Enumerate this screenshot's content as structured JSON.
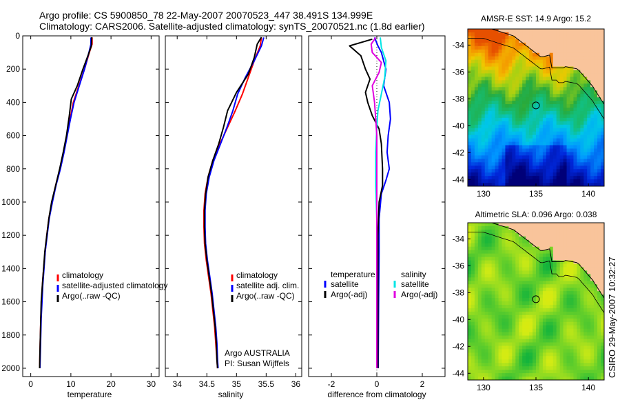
{
  "header": {
    "line1": "Argo profile: CS 5900850_78 22-May-2007 20070523_447 38.491S 134.999E",
    "line2": "Climatology: CARS2006. Satellite-adjusted climatology: synTS_20070521.nc (1.8d earlier)"
  },
  "colors": {
    "climatology": "#ff0000",
    "satellite": "#0000ff",
    "argo": "#000000",
    "sal_sat": "#00e5e5",
    "sal_argo": "#e000e0"
  },
  "chart_data": [
    {
      "type": "line",
      "id": "temperature",
      "xlabel": "temperature",
      "ylabel": "",
      "xlim": [
        -2,
        32
      ],
      "ylim": [
        2050,
        0
      ],
      "xticks": [
        0,
        10,
        20,
        30
      ],
      "yticks": [
        0,
        200,
        400,
        600,
        800,
        1000,
        1200,
        1400,
        1600,
        1800,
        2000
      ],
      "legend": [
        "climatology",
        "satellite-adjusted climatology",
        "Argo(..raw -QC)"
      ],
      "series": [
        {
          "name": "climatology",
          "color": "#ff0000",
          "points": [
            [
              15.3,
              10
            ],
            [
              15.3,
              50
            ],
            [
              14.6,
              100
            ],
            [
              13.4,
              200
            ],
            [
              12.0,
              300
            ],
            [
              10.6,
              400
            ],
            [
              9.8,
              500
            ],
            [
              9.0,
              600
            ],
            [
              8.2,
              700
            ],
            [
              7.3,
              800
            ],
            [
              6.2,
              900
            ],
            [
              5.3,
              1000
            ],
            [
              4.5,
              1100
            ],
            [
              4.0,
              1200
            ],
            [
              3.6,
              1300
            ],
            [
              3.2,
              1400
            ],
            [
              2.9,
              1500
            ],
            [
              2.7,
              1600
            ],
            [
              2.5,
              1700
            ],
            [
              2.4,
              1800
            ],
            [
              2.3,
              1900
            ],
            [
              2.2,
              2000
            ]
          ]
        },
        {
          "name": "satellite-adjusted climatology",
          "color": "#0000ff",
          "points": [
            [
              15.0,
              10
            ],
            [
              15.0,
              50
            ],
            [
              14.5,
              100
            ],
            [
              13.4,
              200
            ],
            [
              12.1,
              300
            ],
            [
              10.8,
              400
            ],
            [
              9.9,
              500
            ],
            [
              9.1,
              600
            ],
            [
              8.3,
              700
            ],
            [
              7.4,
              800
            ],
            [
              6.3,
              900
            ],
            [
              5.4,
              1000
            ],
            [
              4.6,
              1100
            ],
            [
              4.1,
              1200
            ],
            [
              3.6,
              1300
            ],
            [
              3.3,
              1400
            ],
            [
              3.0,
              1500
            ],
            [
              2.8,
              1600
            ],
            [
              2.6,
              1700
            ],
            [
              2.5,
              1800
            ],
            [
              2.4,
              1900
            ],
            [
              2.3,
              2000
            ]
          ]
        },
        {
          "name": "Argo(..raw -QC)",
          "color": "#000000",
          "points": [
            [
              15.2,
              8
            ],
            [
              15.1,
              60
            ],
            [
              14.4,
              110
            ],
            [
              13.0,
              200
            ],
            [
              11.6,
              300
            ],
            [
              10.1,
              380
            ],
            [
              9.6,
              480
            ],
            [
              8.9,
              600
            ],
            [
              8.1,
              700
            ],
            [
              7.2,
              800
            ],
            [
              6.2,
              900
            ],
            [
              5.2,
              1000
            ],
            [
              4.5,
              1100
            ],
            [
              4.0,
              1200
            ],
            [
              3.5,
              1300
            ],
            [
              3.2,
              1400
            ],
            [
              2.9,
              1500
            ],
            [
              2.6,
              1600
            ],
            [
              2.5,
              1700
            ],
            [
              2.4,
              1800
            ],
            [
              2.3,
              1900
            ],
            [
              2.2,
              2000
            ]
          ]
        }
      ]
    },
    {
      "type": "line",
      "id": "salinity",
      "xlabel": "salinity",
      "xlim": [
        33.8,
        36.1
      ],
      "ylim": [
        2050,
        0
      ],
      "xticks": [
        34,
        34.5,
        35,
        35.5,
        36
      ],
      "legend": [
        "climatology",
        "satellite adj. clim.",
        "Argo(..raw -QC)"
      ],
      "annotation": [
        "Argo AUSTRALIA",
        "PI: Susan Wijffels"
      ],
      "series": [
        {
          "name": "climatology",
          "color": "#ff0000",
          "points": [
            [
              35.42,
              10
            ],
            [
              35.4,
              60
            ],
            [
              35.3,
              150
            ],
            [
              35.2,
              250
            ],
            [
              35.1,
              350
            ],
            [
              34.98,
              450
            ],
            [
              34.85,
              550
            ],
            [
              34.72,
              650
            ],
            [
              34.6,
              750
            ],
            [
              34.52,
              850
            ],
            [
              34.47,
              950
            ],
            [
              34.45,
              1050
            ],
            [
              34.45,
              1150
            ],
            [
              34.46,
              1250
            ],
            [
              34.49,
              1350
            ],
            [
              34.53,
              1450
            ],
            [
              34.57,
              1550
            ],
            [
              34.6,
              1650
            ],
            [
              34.63,
              1750
            ],
            [
              34.65,
              1850
            ],
            [
              34.67,
              1950
            ],
            [
              34.68,
              2000
            ]
          ]
        },
        {
          "name": "satellite adj. clim.",
          "color": "#0000ff",
          "points": [
            [
              35.46,
              10
            ],
            [
              35.42,
              60
            ],
            [
              35.3,
              150
            ],
            [
              35.15,
              250
            ],
            [
              35.02,
              350
            ],
            [
              34.94,
              450
            ],
            [
              34.84,
              550
            ],
            [
              34.73,
              650
            ],
            [
              34.62,
              750
            ],
            [
              34.54,
              850
            ],
            [
              34.49,
              950
            ],
            [
              34.47,
              1050
            ],
            [
              34.47,
              1150
            ],
            [
              34.48,
              1250
            ],
            [
              34.51,
              1350
            ],
            [
              34.55,
              1450
            ],
            [
              34.59,
              1550
            ],
            [
              34.62,
              1650
            ],
            [
              34.65,
              1750
            ],
            [
              34.67,
              1850
            ],
            [
              34.68,
              1950
            ],
            [
              34.69,
              2000
            ]
          ]
        },
        {
          "name": "Argo(..raw -QC)",
          "color": "#000000",
          "points": [
            [
              35.42,
              8
            ],
            [
              35.35,
              50
            ],
            [
              35.3,
              130
            ],
            [
              35.2,
              230
            ],
            [
              35.0,
              340
            ],
            [
              34.85,
              450
            ],
            [
              34.78,
              550
            ],
            [
              34.7,
              650
            ],
            [
              34.6,
              750
            ],
            [
              34.52,
              850
            ],
            [
              34.48,
              950
            ],
            [
              34.46,
              1050
            ],
            [
              34.46,
              1150
            ],
            [
              34.47,
              1250
            ],
            [
              34.5,
              1350
            ],
            [
              34.54,
              1450
            ],
            [
              34.58,
              1550
            ],
            [
              34.61,
              1650
            ],
            [
              34.64,
              1750
            ],
            [
              34.66,
              1850
            ],
            [
              34.67,
              1950
            ],
            [
              34.68,
              2000
            ]
          ]
        }
      ]
    },
    {
      "type": "line",
      "id": "difference",
      "xlabel": "difference from climatology",
      "xlim": [
        -3,
        3
      ],
      "ylim": [
        2050,
        0
      ],
      "xticks": [
        -2,
        0,
        2
      ],
      "legend_left_title": "temperature",
      "legend_right_title": "salinity",
      "legend_left": [
        "satellite",
        "Argo(-adj)"
      ],
      "legend_right": [
        "satellite",
        "Argo(-adj)"
      ],
      "series": [
        {
          "name": "temperature satellite",
          "color": "#0000ff",
          "points": [
            [
              -0.1,
              10
            ],
            [
              0.05,
              60
            ],
            [
              0.2,
              100
            ],
            [
              0.4,
              200
            ],
            [
              0.3,
              300
            ],
            [
              0.55,
              400
            ],
            [
              0.6,
              500
            ],
            [
              0.5,
              600
            ],
            [
              0.45,
              700
            ],
            [
              0.55,
              800
            ],
            [
              0.4,
              870
            ],
            [
              0.2,
              950
            ],
            [
              0.1,
              1100
            ],
            [
              0.1,
              1300
            ],
            [
              0.08,
              1600
            ],
            [
              0.06,
              2000
            ]
          ]
        },
        {
          "name": "temperature Argo(-adj)",
          "color": "#000000",
          "points": [
            [
              -0.2,
              20
            ],
            [
              -1.2,
              60
            ],
            [
              -0.7,
              120
            ],
            [
              -0.5,
              200
            ],
            [
              -0.3,
              260
            ],
            [
              -0.5,
              340
            ],
            [
              -0.4,
              400
            ],
            [
              -0.2,
              480
            ],
            [
              0.1,
              560
            ],
            [
              0.2,
              650
            ],
            [
              0.25,
              800
            ],
            [
              0.25,
              900
            ],
            [
              0.1,
              1000
            ],
            [
              0.05,
              1200
            ],
            [
              0.05,
              1600
            ],
            [
              0.05,
              2000
            ]
          ]
        },
        {
          "name": "salinity satellite",
          "color": "#00e5e5",
          "points": [
            [
              0.15,
              10
            ],
            [
              0.2,
              70
            ],
            [
              0.4,
              150
            ],
            [
              0.35,
              250
            ],
            [
              0.2,
              350
            ],
            [
              0.05,
              450
            ],
            [
              0.0,
              550
            ],
            [
              -0.05,
              700
            ],
            [
              -0.05,
              900
            ],
            [
              0.0,
              1100
            ],
            [
              0.0,
              1400
            ],
            [
              0.0,
              2000
            ]
          ]
        },
        {
          "name": "salinity Argo(-adj)",
          "color": "#e000e0",
          "points": [
            [
              -0.05,
              10
            ],
            [
              -0.25,
              50
            ],
            [
              -0.2,
              100
            ],
            [
              0.2,
              160
            ],
            [
              0.1,
              220
            ],
            [
              -0.2,
              300
            ],
            [
              -0.1,
              400
            ],
            [
              -0.05,
              500
            ],
            [
              0.0,
              600
            ],
            [
              0.0,
              700
            ],
            [
              0.0,
              900
            ],
            [
              0.0,
              1200
            ],
            [
              0.0,
              1600
            ],
            [
              0.0,
              2000
            ]
          ]
        }
      ]
    },
    {
      "type": "heatmap",
      "id": "sst_map",
      "title": "AMSR-E SST: 14.9 Argo: 15.2",
      "xlim": [
        128.5,
        141.5
      ],
      "ylim": [
        -44.5,
        -32.8
      ],
      "xticks": [
        130,
        135,
        140
      ],
      "yticks": [
        -34,
        -36,
        -38,
        -40,
        -42,
        -44
      ],
      "marker": {
        "lon": 134.999,
        "lat": -38.491
      }
    },
    {
      "type": "heatmap",
      "id": "sla_map",
      "title": "Altimetric SLA: 0.096 Argo: 0.038",
      "xlim": [
        128.5,
        141.5
      ],
      "ylim": [
        -44.5,
        -32.8
      ],
      "xticks": [
        130,
        135,
        140
      ],
      "yticks": [
        -34,
        -36,
        -38,
        -40,
        -42,
        -44
      ],
      "marker": {
        "lon": 134.999,
        "lat": -38.491
      }
    }
  ],
  "footer": {
    "credit": "CSIRO 29-May-2007 10:32:27"
  }
}
